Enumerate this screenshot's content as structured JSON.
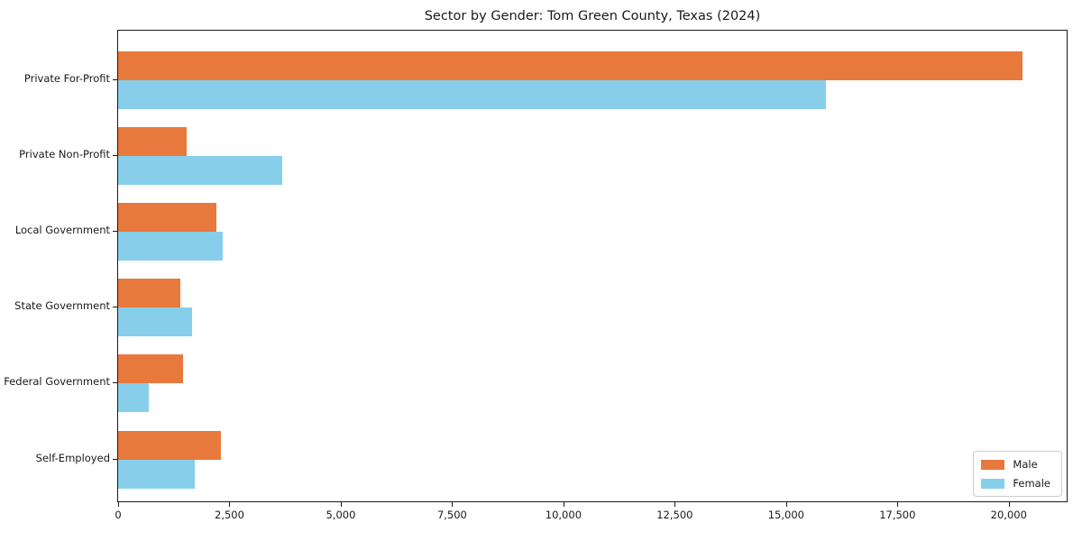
{
  "title": "Sector by Gender: Tom Green County, Texas (2024)",
  "chart_data": {
    "type": "bar",
    "orientation": "horizontal",
    "title": "Sector by Gender: Tom Green County, Texas (2024)",
    "categories": [
      "Private For-Profit",
      "Private Non-Profit",
      "Local Government",
      "State Government",
      "Federal Government",
      "Self-Employed"
    ],
    "series": [
      {
        "name": "Male",
        "color": "#e8793d",
        "values": [
          20300,
          1540,
          2200,
          1400,
          1460,
          2300
        ]
      },
      {
        "name": "Female",
        "color": "#87ceeb",
        "values": [
          15900,
          3680,
          2350,
          1660,
          690,
          1720
        ]
      }
    ],
    "xlabel": "",
    "ylabel": "",
    "xlim": [
      0,
      21300
    ],
    "x_ticks": [
      0,
      2500,
      5000,
      7500,
      10000,
      12500,
      15000,
      17500,
      20000
    ],
    "x_tick_labels": [
      "0",
      "2,500",
      "5,000",
      "7,500",
      "10,000",
      "12,500",
      "15,000",
      "17,500",
      "20,000"
    ],
    "grid": false,
    "legend_position": "lower right",
    "axis_color": "#1a1a1a"
  }
}
